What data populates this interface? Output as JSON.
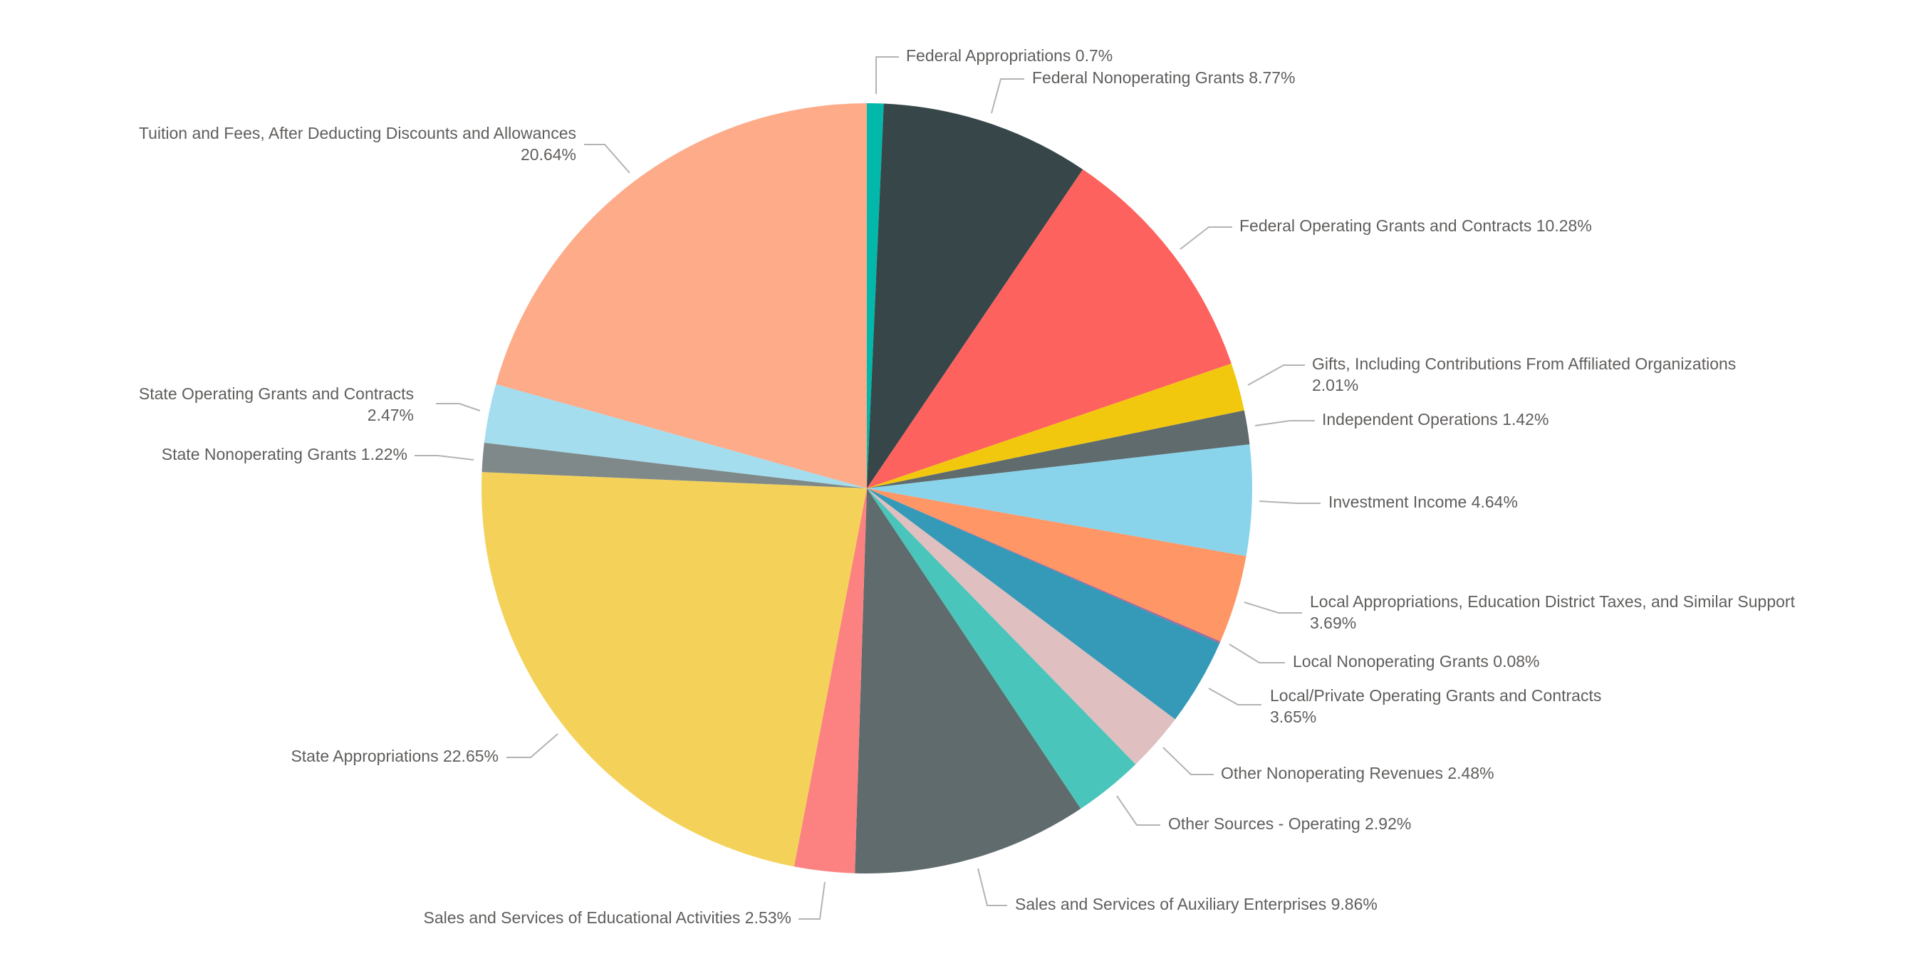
{
  "chart_data": {
    "type": "pie",
    "title": "",
    "start_angle": "top, clockwise",
    "legend": "none (data labels with leader lines)",
    "slices": [
      {
        "name": "Federal Appropriations",
        "value": 0.7,
        "color": "#01B8AA"
      },
      {
        "name": "Federal Nonoperating Grants",
        "value": 8.77,
        "color": "#374649"
      },
      {
        "name": "Federal Operating Grants and Contracts",
        "value": 10.28,
        "color": "#FD625E"
      },
      {
        "name": "Gifts, Including Contributions From Affiliated Organizations",
        "value": 2.01,
        "color": "#F2C80F"
      },
      {
        "name": "Independent Operations",
        "value": 1.42,
        "color": "#5F6B6D"
      },
      {
        "name": "Investment Income",
        "value": 4.64,
        "color": "#8AD4EB"
      },
      {
        "name": "Local Appropriations, Education District Taxes, and Similar Support",
        "value": 3.69,
        "color": "#FE9666"
      },
      {
        "name": "Local Nonoperating Grants",
        "value": 0.08,
        "color": "#A66999"
      },
      {
        "name": "Local/Private Operating Grants and Contracts",
        "value": 3.65,
        "color": "#3599B8"
      },
      {
        "name": "Other Nonoperating Revenues",
        "value": 2.48,
        "color": "#DFBFBF"
      },
      {
        "name": "Other Sources - Operating",
        "value": 2.92,
        "color": "#4AC5BB"
      },
      {
        "name": "Sales and Services of Auxiliary Enterprises",
        "value": 9.86,
        "color": "#5F6B6D"
      },
      {
        "name": "Sales and Services of Educational Activities",
        "value": 2.53,
        "color": "#FB8281"
      },
      {
        "name": "State Appropriations",
        "value": 22.65,
        "color": "#F4D25A"
      },
      {
        "name": "State Nonoperating Grants",
        "value": 1.22,
        "color": "#7F898A"
      },
      {
        "name": "State Operating Grants and Contracts",
        "value": 2.47,
        "color": "#A4DDEE"
      },
      {
        "name": "Tuition and Fees, After Deducting Discounts and Allowances",
        "value": 20.64,
        "color": "#FDAB89"
      }
    ],
    "unit": "%"
  }
}
